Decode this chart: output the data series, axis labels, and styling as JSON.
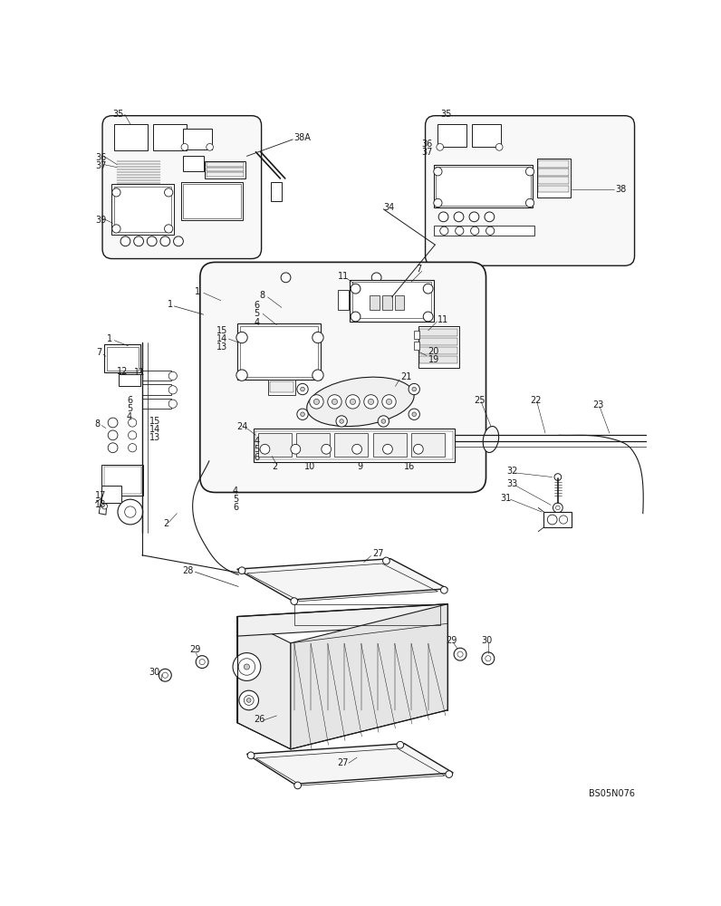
{
  "bg_color": "#ffffff",
  "line_color": "#1a1a1a",
  "fig_width": 7.96,
  "fig_height": 10.0,
  "watermark": "BS05N076"
}
